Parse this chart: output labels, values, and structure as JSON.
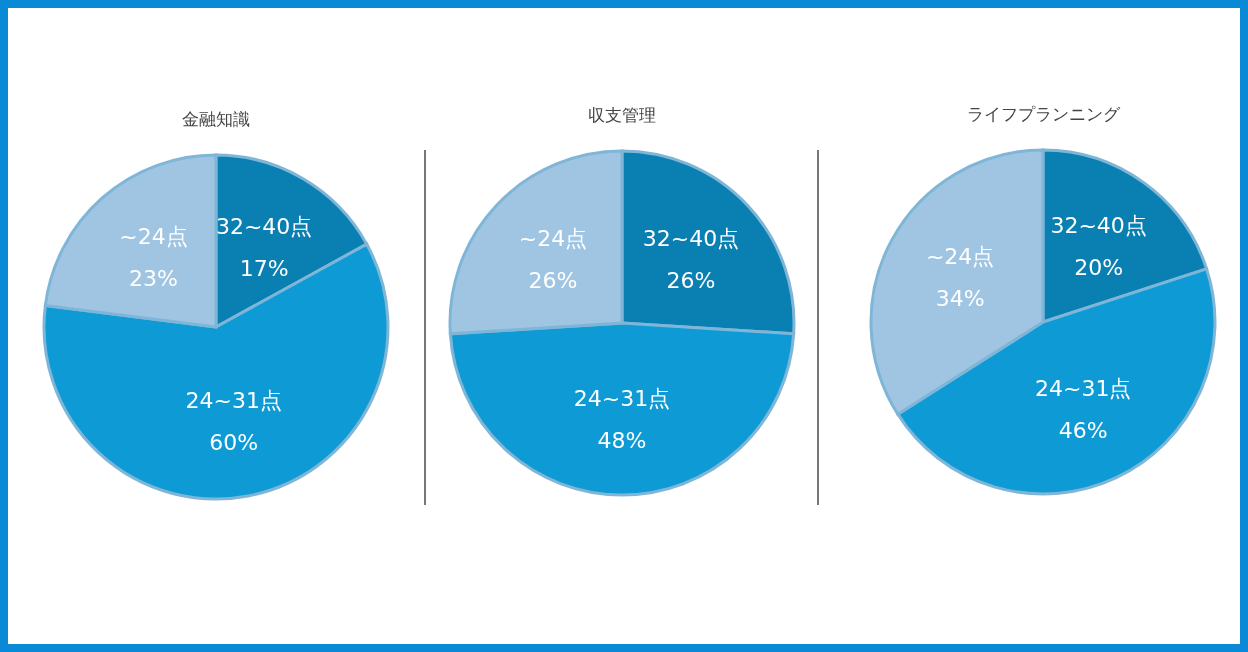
{
  "chart_data": [
    {
      "type": "pie",
      "title": "金融知識",
      "categories": [
        "32~40点",
        "24~31点",
        "~24点"
      ],
      "values": [
        17,
        60,
        23
      ],
      "colors": [
        "#0a7fb2",
        "#0e9bd5",
        "#a0c5e2"
      ],
      "value_labels": [
        "17%",
        "60%",
        "23%"
      ]
    },
    {
      "type": "pie",
      "title": "収支管理",
      "categories": [
        "32~40点",
        "24~31点",
        "~24点"
      ],
      "values": [
        26,
        48,
        26
      ],
      "colors": [
        "#0a7fb2",
        "#0e9bd5",
        "#a0c5e2"
      ],
      "value_labels": [
        "26%",
        "48%",
        "26%"
      ]
    },
    {
      "type": "pie",
      "title": "ライフプランニング",
      "categories": [
        "32~40点",
        "24~31点",
        "~24点"
      ],
      "values": [
        20,
        46,
        34
      ],
      "colors": [
        "#0a7fb2",
        "#0e9bd5",
        "#a0c5e2"
      ],
      "value_labels": [
        "20%",
        "46%",
        "34%"
      ]
    }
  ]
}
